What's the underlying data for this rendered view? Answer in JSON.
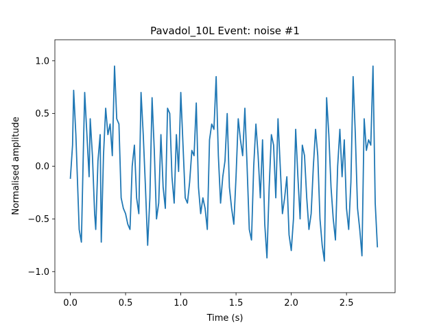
{
  "chart_data": {
    "type": "line",
    "title": "Pavadol_10L Event: noise #1",
    "xlabel": "Time (s)",
    "ylabel": "Normalised amplitude",
    "xlim": [
      -0.14,
      2.94
    ],
    "ylim": [
      -1.2,
      1.2
    ],
    "xticks": [
      0.0,
      0.5,
      1.0,
      1.5,
      2.0,
      2.5
    ],
    "xtick_labels": [
      "0.0",
      "0.5",
      "1.0",
      "1.5",
      "2.0",
      "2.5"
    ],
    "yticks": [
      -1.0,
      -0.5,
      0.0,
      0.5,
      1.0
    ],
    "ytick_labels": [
      "−1.0",
      "−0.5",
      "0.0",
      "0.5",
      "1.0"
    ],
    "grid": false,
    "legend": "none",
    "series": [
      {
        "color": "#1f77b4",
        "x": [
          0.0,
          0.02,
          0.03,
          0.05,
          0.07,
          0.08,
          0.1,
          0.12,
          0.13,
          0.15,
          0.17,
          0.18,
          0.2,
          0.22,
          0.23,
          0.25,
          0.27,
          0.28,
          0.3,
          0.32,
          0.34,
          0.36,
          0.38,
          0.4,
          0.42,
          0.44,
          0.46,
          0.48,
          0.5,
          0.52,
          0.54,
          0.56,
          0.58,
          0.6,
          0.62,
          0.64,
          0.66,
          0.68,
          0.7,
          0.72,
          0.74,
          0.76,
          0.78,
          0.8,
          0.82,
          0.84,
          0.86,
          0.88,
          0.9,
          0.92,
          0.94,
          0.96,
          0.98,
          1.0,
          1.02,
          1.04,
          1.06,
          1.08,
          1.1,
          1.12,
          1.14,
          1.16,
          1.18,
          1.2,
          1.22,
          1.24,
          1.26,
          1.28,
          1.3,
          1.32,
          1.34,
          1.36,
          1.38,
          1.4,
          1.42,
          1.44,
          1.46,
          1.48,
          1.5,
          1.52,
          1.54,
          1.56,
          1.58,
          1.6,
          1.62,
          1.64,
          1.66,
          1.68,
          1.7,
          1.72,
          1.74,
          1.76,
          1.78,
          1.8,
          1.82,
          1.84,
          1.86,
          1.88,
          1.9,
          1.92,
          1.94,
          1.96,
          1.98,
          2.0,
          2.02,
          2.04,
          2.06,
          2.08,
          2.1,
          2.12,
          2.14,
          2.16,
          2.18,
          2.2,
          2.22,
          2.24,
          2.26,
          2.28,
          2.3,
          2.32,
          2.34,
          2.36,
          2.38,
          2.4,
          2.42,
          2.44,
          2.46,
          2.48,
          2.5,
          2.52,
          2.54,
          2.56,
          2.58,
          2.6,
          2.62,
          2.64,
          2.66,
          2.68,
          2.7,
          2.72,
          2.74,
          2.76,
          2.78
        ],
        "y": [
          -0.12,
          0.2,
          0.72,
          0.3,
          -0.3,
          -0.6,
          -0.72,
          0.25,
          0.7,
          0.3,
          -0.1,
          0.45,
          0.1,
          -0.45,
          -0.6,
          0.05,
          0.3,
          -0.72,
          0.1,
          0.55,
          0.3,
          0.4,
          0.1,
          0.95,
          0.45,
          0.4,
          -0.3,
          -0.4,
          -0.45,
          -0.55,
          -0.6,
          0.0,
          0.2,
          -0.3,
          -0.45,
          0.7,
          0.3,
          -0.2,
          -0.75,
          -0.3,
          0.65,
          0.15,
          -0.5,
          -0.35,
          0.3,
          -0.2,
          -0.4,
          0.55,
          0.5,
          -0.1,
          -0.35,
          0.3,
          -0.05,
          0.7,
          0.2,
          -0.3,
          -0.35,
          -0.15,
          0.15,
          0.1,
          0.6,
          -0.2,
          -0.45,
          -0.3,
          -0.4,
          -0.6,
          0.25,
          0.4,
          0.35,
          0.85,
          0.1,
          -0.35,
          -0.1,
          0.05,
          0.5,
          -0.2,
          -0.4,
          -0.55,
          -0.1,
          0.45,
          0.25,
          0.1,
          0.55,
          0.0,
          -0.6,
          -0.7,
          0.0,
          0.4,
          0.1,
          -0.3,
          0.25,
          -0.55,
          -0.87,
          -0.2,
          0.3,
          0.2,
          -0.3,
          0.45,
          0.0,
          -0.45,
          -0.3,
          -0.1,
          -0.65,
          -0.8,
          -0.5,
          0.35,
          -0.1,
          -0.5,
          0.2,
          0.1,
          -0.3,
          -0.6,
          -0.45,
          0.0,
          0.35,
          0.1,
          -0.5,
          -0.75,
          -0.9,
          0.65,
          0.3,
          -0.2,
          -0.5,
          -0.7,
          0.0,
          0.35,
          -0.1,
          0.25,
          -0.4,
          -0.6,
          -0.15,
          0.85,
          0.3,
          -0.4,
          -0.6,
          -0.85,
          0.45,
          0.15,
          0.25,
          0.2,
          0.95,
          -0.35,
          -0.77
        ]
      }
    ]
  }
}
